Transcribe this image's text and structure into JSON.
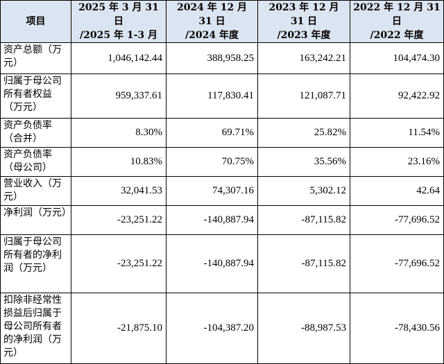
{
  "table": {
    "headers": [
      {
        "line1": "项目",
        "line2": ""
      },
      {
        "line1": "2025 年 3 月 31 日",
        "line2": "/2025 年 1-3 月"
      },
      {
        "line1": "2024 年 12 月 31 日",
        "line2": "/2024 年度"
      },
      {
        "line1": "2023 年 12 月 31 日",
        "line2": "/2023 年度"
      },
      {
        "line1": "2022 年 12 月 31 日",
        "line2": "/2022 年度"
      }
    ],
    "rows": [
      {
        "label": "资产总额（万元）",
        "values": [
          "1,046,142.44",
          "388,958.25",
          "163,242.21",
          "104,474.30"
        ]
      },
      {
        "label": "归属于母公司所有者权益（万元）",
        "values": [
          "959,337.61",
          "117,830.41",
          "121,087.71",
          "92,422.92"
        ]
      },
      {
        "label": "资产负债率（合并）",
        "values": [
          "8.30%",
          "69.71%",
          "25.82%",
          "11.54%"
        ]
      },
      {
        "label": "资产负债率（母公司）",
        "values": [
          "10.83%",
          "70.75%",
          "35.56%",
          "23.16%"
        ]
      },
      {
        "label": "营业收入（万元）",
        "values": [
          "32,041.53",
          "74,307.16",
          "5,302.12",
          "42.64"
        ]
      },
      {
        "label": "净利润（万元）",
        "values": [
          "-23,251.22",
          "-140,887.94",
          "-87,115.82",
          "-77,696.52"
        ]
      },
      {
        "label": "归属于母公司所有者的净利润（万元）",
        "values": [
          "-23,251.22",
          "-140,887.94",
          "-87,115.82",
          "-77,696.52"
        ]
      },
      {
        "label": "扣除非经常性损益后归属于母公司所有者的净利润（万元）",
        "values": [
          "-21,875.10",
          "-104,387.20",
          "-88,987.53",
          "-78,430.56"
        ]
      }
    ]
  }
}
